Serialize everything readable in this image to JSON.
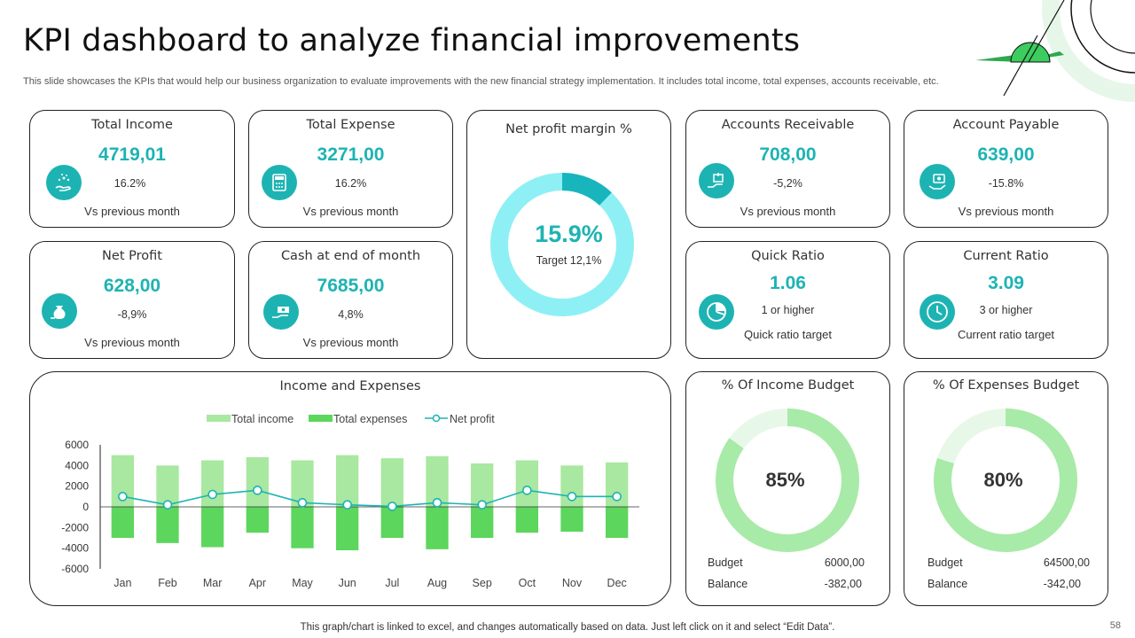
{
  "header": {
    "title": "KPI dashboard to analyze financial improvements",
    "subtitle": "This slide showcases the KPIs that would help our business organization to evaluate improvements with the new financial strategy implementation. It includes total income, total expenses, accounts receivable, etc."
  },
  "kpis": {
    "total_income": {
      "title": "Total Income",
      "value": "4719,01",
      "pct": "16.2%",
      "sub": "Vs previous  month"
    },
    "total_expense": {
      "title": "Total Expense",
      "value": "3271,00",
      "pct": "16.2%",
      "sub": "Vs previous  month"
    },
    "accounts_receivable": {
      "title": "Accounts Receivable",
      "value": "708,00",
      "pct": "-5,2%",
      "sub": "Vs previous  month"
    },
    "account_payable": {
      "title": "Account Payable",
      "value": "639,00",
      "pct": "-15.8%",
      "sub": "Vs previous  month"
    },
    "net_profit": {
      "title": "Net Profit",
      "value": "628,00",
      "pct": "-8,9%",
      "sub": "Vs previous  month"
    },
    "cash_end": {
      "title": "Cash at end of month",
      "value": "7685,00",
      "pct": "4,8%",
      "sub": "Vs previous  month"
    },
    "quick_ratio": {
      "title": "Quick Ratio",
      "value": "1.06",
      "pct": "1 or higher",
      "sub": "Quick ratio target"
    },
    "current_ratio": {
      "title": "Current Ratio",
      "value": "3.09",
      "pct": "3 or higher",
      "sub": "Current  ratio target"
    }
  },
  "net_profit_margin": {
    "title": "Net profit margin %",
    "value": "15.9%",
    "target": "Target  12,1%",
    "fraction": 0.121
  },
  "income_budget": {
    "title": "% Of Income Budget",
    "value": "85%",
    "fraction": 0.85,
    "budget_label": "Budget",
    "budget_value": "6000,00",
    "balance_label": "Balance",
    "balance_value": "-382,00"
  },
  "expenses_budget": {
    "title": "% Of Expenses Budget",
    "value": "80%",
    "fraction": 0.8,
    "budget_label": "Budget",
    "budget_value": "64500,00",
    "balance_label": "Balance",
    "balance_value": "-342,00"
  },
  "colors": {
    "teal": "#1eb3b3",
    "donut_light": "#8ef0f5",
    "donut_dark": "#18b5bc",
    "income": "#a8e8a0",
    "expenses": "#5cd65c",
    "budget_main": "#a8eaa8",
    "budget_rest": "#e8f8e8",
    "line": "#1eb3b3"
  },
  "footer": "This graph/chart is linked to excel,  and changes automatically based on data. Just left click on it and select “Edit Data”.",
  "page_number": "58",
  "chart_data": {
    "type": "bar",
    "title": "Income and Expenses",
    "categories": [
      "Jan",
      "Feb",
      "Mar",
      "Apr",
      "May",
      "Jun",
      "Jul",
      "Aug",
      "Sep",
      "Oct",
      "Nov",
      "Dec"
    ],
    "series": [
      {
        "name": "Total income",
        "type": "bar",
        "values": [
          5000,
          4000,
          4500,
          4800,
          4500,
          5000,
          4700,
          4900,
          4200,
          4500,
          4000,
          4300
        ]
      },
      {
        "name": "Total expenses",
        "type": "bar",
        "values": [
          -3000,
          -3500,
          -3900,
          -2500,
          -4000,
          -4200,
          -3000,
          -4100,
          -3000,
          -2500,
          -2400,
          -3000
        ]
      },
      {
        "name": "Net profit",
        "type": "line",
        "values": [
          1000,
          200,
          1200,
          1600,
          400,
          200,
          50,
          400,
          200,
          1600,
          1000,
          1000
        ]
      }
    ],
    "yticks": [
      6000,
      4000,
      2000,
      0,
      -2000,
      -4000,
      -6000
    ],
    "ylim": [
      -6000,
      6000
    ],
    "legend": "top"
  }
}
